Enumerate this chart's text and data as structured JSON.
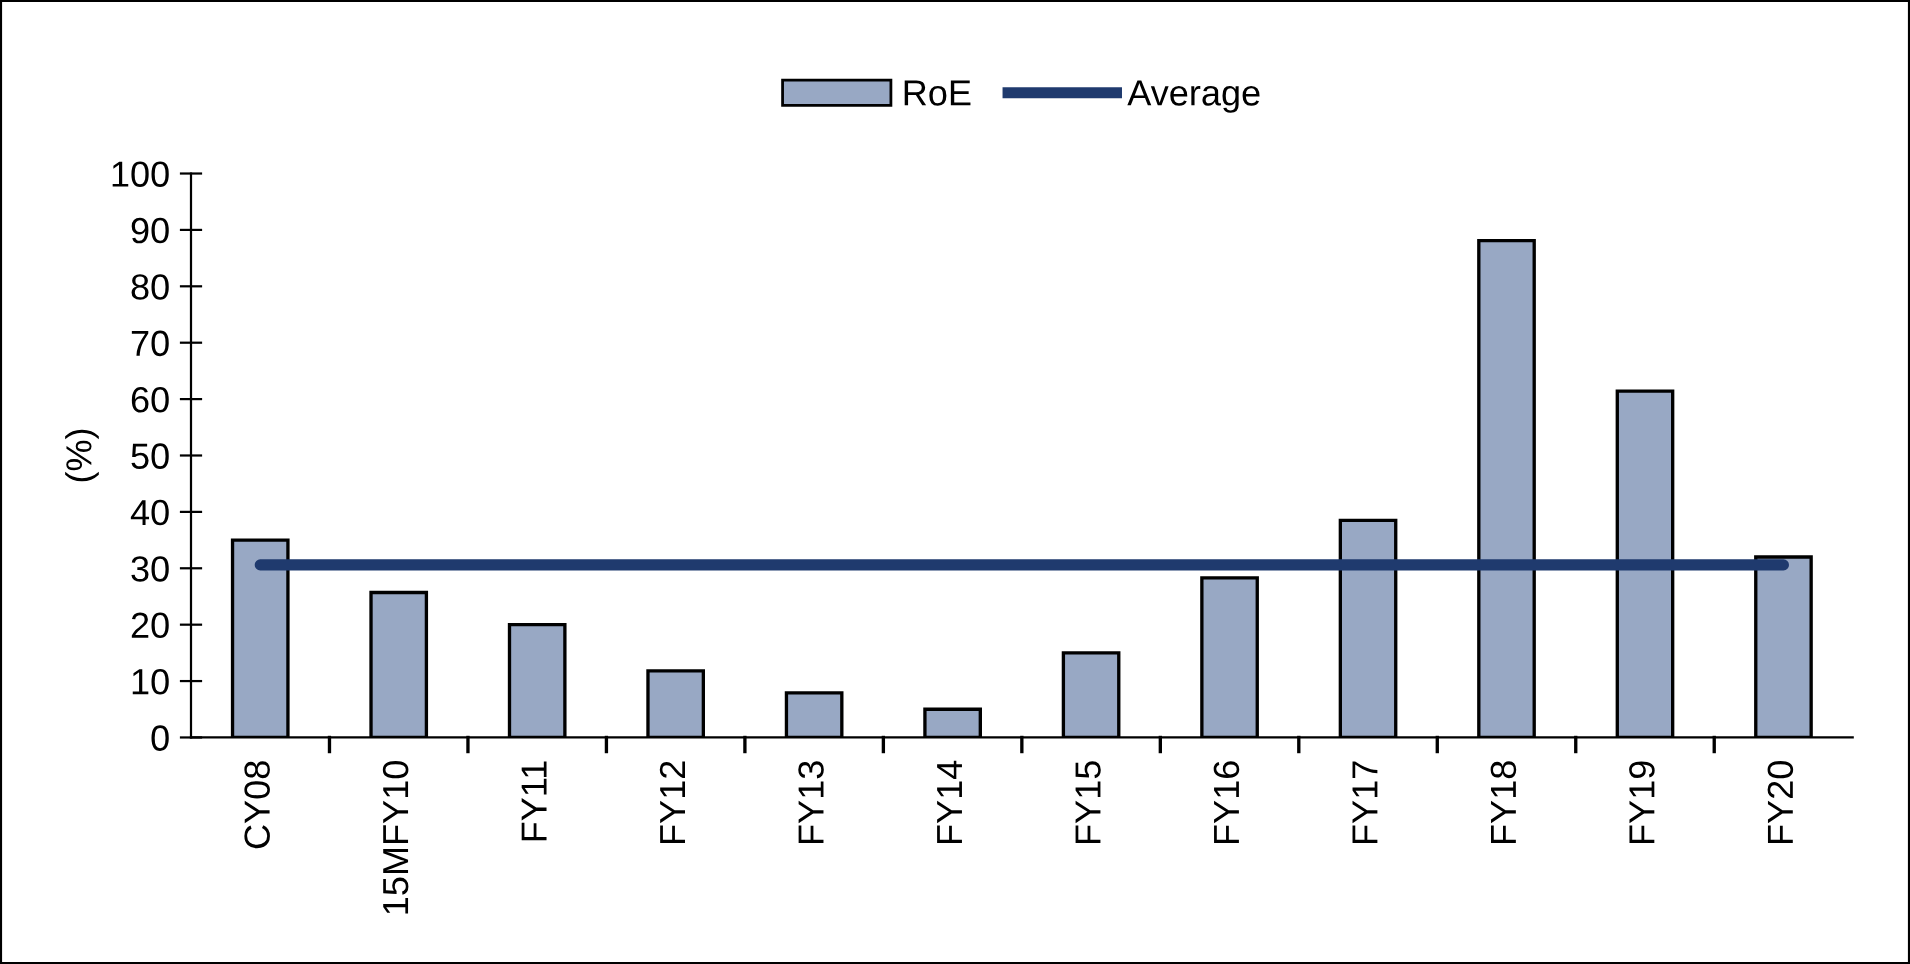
{
  "chart_data": {
    "type": "bar",
    "ylabel": "(%)",
    "categories": [
      "CY08",
      "15MFY10",
      "FY11",
      "FY12",
      "FY13",
      "FY14",
      "FY15",
      "FY16",
      "FY17",
      "FY18",
      "FY19",
      "FY20"
    ],
    "series": [
      {
        "name": "RoE",
        "color": "#98a8c4",
        "values": [
          35,
          25.7,
          20,
          11.8,
          7.9,
          5,
          15,
          28.3,
          38.5,
          88.1,
          61.4,
          32
        ]
      },
      {
        "name": "Average",
        "type": "line",
        "color": "#1f3a6e",
        "values": [
          30.6,
          30.6,
          30.6,
          30.6,
          30.6,
          30.6,
          30.6,
          30.6,
          30.6,
          30.6,
          30.6,
          30.6
        ]
      }
    ],
    "ylim": [
      0,
      100
    ],
    "yticks": [
      0,
      10,
      20,
      30,
      40,
      50,
      60,
      70,
      80,
      90,
      100
    ],
    "grid": false,
    "legend": "top",
    "marker": "none",
    "line_style": "solid"
  }
}
